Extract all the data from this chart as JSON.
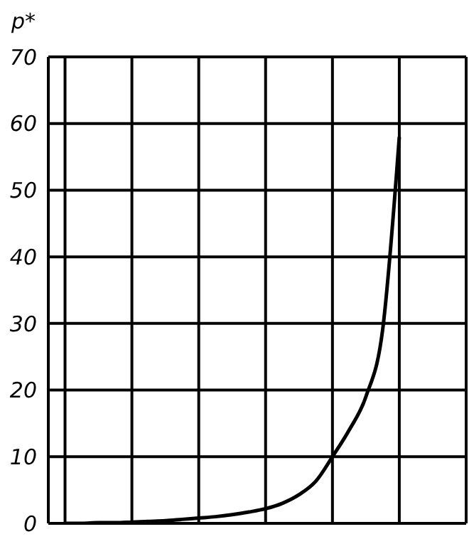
{
  "chart_data": {
    "type": "line",
    "ylabel": "p*",
    "categories": [
      null,
      null,
      null,
      null,
      null,
      null,
      null,
      null,
      null,
      null,
      null,
      null,
      null,
      null,
      null,
      null,
      null,
      null,
      null,
      null,
      null,
      null,
      null,
      null,
      null
    ],
    "series": [
      {
        "color": "#000000",
        "values": [
          0,
          0,
          0.1,
          0.1,
          0.2,
          0.3,
          0.4,
          0.6,
          0.8,
          1.0,
          1.3,
          1.7,
          2.2,
          3,
          4.3,
          6.3,
          10,
          14,
          19,
          29,
          58,
          null,
          null,
          null,
          null
        ]
      }
    ],
    "ylim": [
      0,
      70
    ],
    "yticks": [
      0,
      10,
      20,
      30,
      40,
      50,
      60,
      70
    ],
    "grid": true,
    "marker": "none",
    "line_style": "solid",
    "tick_labels": "y"
  }
}
